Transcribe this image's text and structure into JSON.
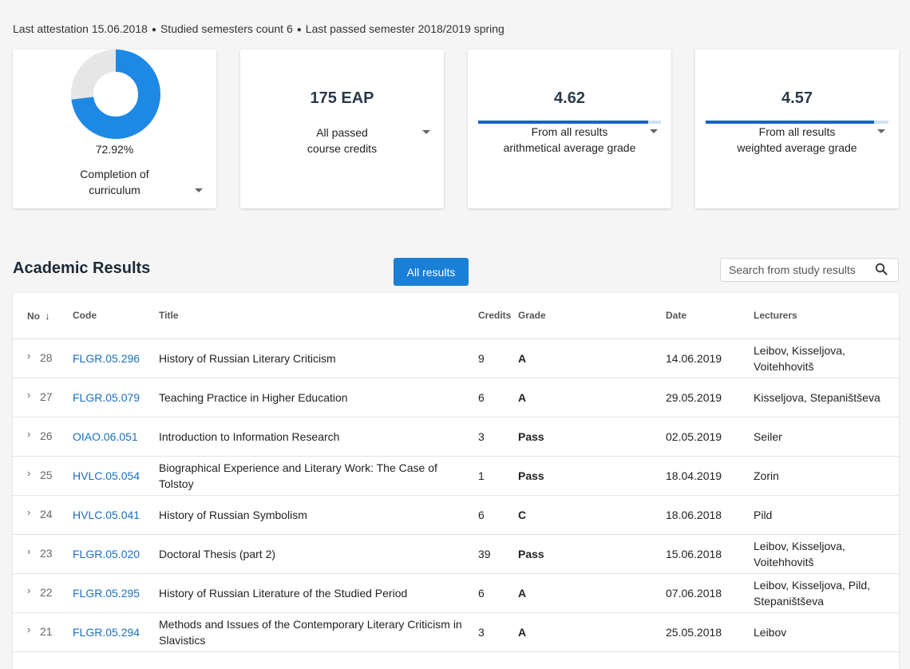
{
  "summary": {
    "attestation": "Last attestation 15.06.2018",
    "semesters": "Studied semesters count 6",
    "last_semester": "Last passed semester 2018/2019 spring"
  },
  "cards": {
    "completion": {
      "percent": 72.92,
      "percent_label": "72.92%",
      "label_line1": "Completion of",
      "label_line2": "curriculum"
    },
    "credits": {
      "value": "175 EAP",
      "label_line1": "All passed",
      "label_line2": "course credits"
    },
    "arith": {
      "value": "4.62",
      "fill": 0.93,
      "label_line1": "From all results",
      "label_line2": "arithmetical average grade"
    },
    "weighted": {
      "value": "4.57",
      "fill": 0.92,
      "label_line1": "From all results",
      "label_line2": "weighted average grade"
    }
  },
  "colors": {
    "accent": "#1e88e5",
    "track": "#e6e6e6",
    "button": "#1a7fd6",
    "link": "#1a6fc2"
  },
  "results": {
    "title": "Academic Results",
    "filter_button": "All results",
    "search_placeholder": "Search from study results"
  },
  "table": {
    "headers": {
      "no": "No",
      "sort_icon": "↓",
      "code": "Code",
      "title": "Title",
      "credits": "Credits",
      "grade": "Grade",
      "date": "Date",
      "lecturers": "Lecturers"
    },
    "rows": [
      {
        "no": "28",
        "code": "FLGR.05.296",
        "title": "History of Russian Literary Criticism",
        "credits": "9",
        "grade": "A",
        "date": "14.06.2019",
        "lecturers": "Leibov, Kisseljova, Voitehhovitš"
      },
      {
        "no": "27",
        "code": "FLGR.05.079",
        "title": "Teaching Practice in Higher Education",
        "credits": "6",
        "grade": "A",
        "date": "29.05.2019",
        "lecturers": "Kisseljova, Stepaništševa"
      },
      {
        "no": "26",
        "code": "OIAO.06.051",
        "title": "Introduction to Information Research",
        "credits": "3",
        "grade": "Pass",
        "date": "02.05.2019",
        "lecturers": "Seiler"
      },
      {
        "no": "25",
        "code": "HVLC.05.054",
        "title": "Biographical Experience and Literary Work: The Case of Tolstoy",
        "credits": "1",
        "grade": "Pass",
        "date": "18.04.2019",
        "lecturers": "Zorin"
      },
      {
        "no": "24",
        "code": "HVLC.05.041",
        "title": "History of Russian Symbolism",
        "credits": "6",
        "grade": "C",
        "date": "18.06.2018",
        "lecturers": "Pild"
      },
      {
        "no": "23",
        "code": "FLGR.05.020",
        "title": "Doctoral Thesis (part 2)",
        "credits": "39",
        "grade": "Pass",
        "date": "15.06.2018",
        "lecturers": "Leibov, Kisseljova, Voitehhovitš"
      },
      {
        "no": "22",
        "code": "FLGR.05.295",
        "title": "History of Russian Literature of the Studied Period",
        "credits": "6",
        "grade": "A",
        "date": "07.06.2018",
        "lecturers": "Leibov, Kisseljova, Pild, Stepaništševa"
      },
      {
        "no": "21",
        "code": "FLGR.05.294",
        "title": "Methods and Issues of the Contemporary Literary Criticism in Slavistics",
        "credits": "3",
        "grade": "A",
        "date": "25.05.2018",
        "lecturers": "Leibov"
      }
    ]
  }
}
